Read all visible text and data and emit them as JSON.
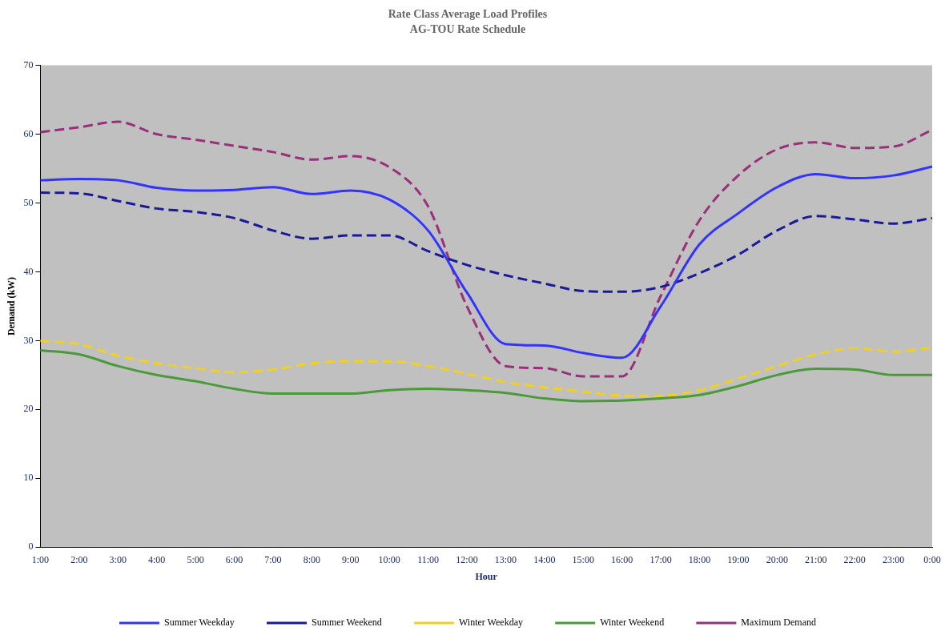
{
  "chart_data": {
    "type": "line",
    "title": "Rate Class Average Load Profiles",
    "subtitle": "AG-TOU Rate Schedule",
    "xlabel": "Hour",
    "ylabel": "Demand (kW)",
    "categories": [
      "1:00",
      "2:00",
      "3:00",
      "4:00",
      "5:00",
      "6:00",
      "7:00",
      "8:00",
      "9:00",
      "10:00",
      "11:00",
      "12:00",
      "13:00",
      "14:00",
      "15:00",
      "16:00",
      "17:00",
      "18:00",
      "19:00",
      "20:00",
      "21:00",
      "22:00",
      "23:00",
      "0:00"
    ],
    "series": [
      {
        "name": "Summer Weekday",
        "color": "#3333ff",
        "line_style": "solid",
        "values": [
          53.3,
          53.5,
          53.3,
          52.2,
          51.8,
          51.9,
          52.3,
          51.3,
          51.8,
          50.5,
          46,
          37,
          29.5,
          29.3,
          28.2,
          27.5,
          35,
          44,
          48.5,
          52.3,
          54.2,
          53.6,
          54,
          55.3
        ]
      },
      {
        "name": "Summer Weekend",
        "color": "#1a1a99",
        "line_style": "dashed",
        "values": [
          51.5,
          51.4,
          50.3,
          49.2,
          48.7,
          47.8,
          46,
          44.8,
          45.3,
          45.3,
          43,
          41,
          39.5,
          38.3,
          37.2,
          37.1,
          37.8,
          39.8,
          42.5,
          46,
          48.1,
          47.6,
          47,
          47.8
        ]
      },
      {
        "name": "Winter Weekday",
        "color": "#f0d020",
        "line_style": "dashed",
        "values": [
          30,
          29.5,
          27.8,
          26.7,
          26,
          25.4,
          25.8,
          26.7,
          27,
          27,
          26.3,
          25.2,
          24,
          23.2,
          22.6,
          22,
          22,
          22.8,
          24.5,
          26.3,
          28,
          28.9,
          28.4,
          29
        ]
      },
      {
        "name": "Winter Weekend",
        "color": "#4a9a3a",
        "line_style": "solid",
        "values": [
          28.6,
          28,
          26.3,
          25,
          24.1,
          23,
          22.3,
          22.3,
          22.3,
          22.8,
          23,
          22.8,
          22.4,
          21.6,
          21.2,
          21.3,
          21.6,
          22.1,
          23.4,
          25,
          25.9,
          25.8,
          25,
          25
        ]
      },
      {
        "name": "Maximum Demand",
        "color": "#99307a",
        "line_style": "dashed",
        "values": [
          60.3,
          61,
          61.8,
          60,
          59.2,
          58.3,
          57.4,
          56.3,
          56.8,
          55.2,
          49.5,
          35,
          26.3,
          26,
          24.8,
          24.8,
          36.5,
          47.5,
          54,
          57.8,
          58.8,
          58,
          58.2,
          60.6
        ]
      }
    ],
    "ylim": [
      0,
      70
    ],
    "yticks": [
      0,
      10,
      20,
      30,
      40,
      50,
      60,
      70
    ],
    "grid": false,
    "legend": "bottom",
    "marker": "none"
  }
}
